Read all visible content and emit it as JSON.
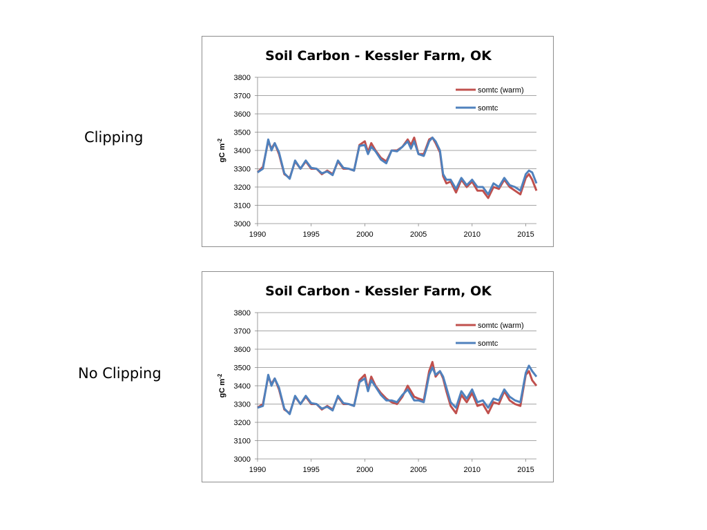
{
  "labels": {
    "chart1": "Clipping",
    "chart2": "No Clipping"
  },
  "colors": {
    "warm": "#c0504d",
    "base": "#4f81bd"
  },
  "chart_data": [
    {
      "type": "line",
      "title": "Soil Carbon - Kessler Farm, OK",
      "ylabel_main": "gC m",
      "ylabel_sup": "-2",
      "xlabel": "",
      "ylim": [
        3000,
        3800
      ],
      "xlim": [
        1990,
        2016
      ],
      "yticks": [
        3000,
        3100,
        3200,
        3300,
        3400,
        3500,
        3600,
        3700,
        3800
      ],
      "xticks": [
        1990,
        1995,
        2000,
        2005,
        2010,
        2015
      ],
      "grid": true,
      "legend": "top-right",
      "series": [
        {
          "name": "somtc (warm)",
          "color": "#c0504d",
          "x": [
            1990,
            1990.5,
            1991,
            1991.3,
            1991.6,
            1992,
            1992.5,
            1993,
            1993.5,
            1994,
            1994.5,
            1995,
            1995.5,
            1996,
            1996.5,
            1997,
            1997.5,
            1998,
            1998.5,
            1999,
            1999.5,
            2000,
            2000.3,
            2000.6,
            2001,
            2001.5,
            2002,
            2002.5,
            2003,
            2003.5,
            2004,
            2004.3,
            2004.6,
            2005,
            2005.5,
            2006,
            2006.3,
            2006.6,
            2007,
            2007.3,
            2007.6,
            2008,
            2008.5,
            2009,
            2009.5,
            2010,
            2010.5,
            2011,
            2011.5,
            2012,
            2012.5,
            2013,
            2013.5,
            2014,
            2014.5,
            2015,
            2015.3,
            2015.6,
            2016
          ],
          "y": [
            3280,
            3310,
            3450,
            3410,
            3440,
            3380,
            3270,
            3250,
            3340,
            3300,
            3340,
            3300,
            3300,
            3270,
            3290,
            3270,
            3340,
            3300,
            3300,
            3290,
            3430,
            3450,
            3390,
            3440,
            3400,
            3360,
            3340,
            3400,
            3400,
            3420,
            3460,
            3430,
            3470,
            3380,
            3380,
            3460,
            3470,
            3440,
            3390,
            3260,
            3220,
            3230,
            3170,
            3240,
            3200,
            3230,
            3180,
            3180,
            3140,
            3200,
            3190,
            3240,
            3200,
            3180,
            3160,
            3250,
            3270,
            3240,
            3180
          ]
        },
        {
          "name": "somtc",
          "color": "#4f81bd",
          "x": [
            1990,
            1990.5,
            1991,
            1991.3,
            1991.6,
            1992,
            1992.5,
            1993,
            1993.5,
            1994,
            1994.5,
            1995,
            1995.5,
            1996,
            1996.5,
            1997,
            1997.5,
            1998,
            1998.5,
            1999,
            1999.5,
            2000,
            2000.3,
            2000.6,
            2001,
            2001.5,
            2002,
            2002.5,
            2003,
            2003.5,
            2004,
            2004.3,
            2004.6,
            2005,
            2005.5,
            2006,
            2006.3,
            2006.6,
            2007,
            2007.3,
            2007.6,
            2008,
            2008.5,
            2009,
            2009.5,
            2010,
            2010.5,
            2011,
            2011.5,
            2012,
            2012.5,
            2013,
            2013.5,
            2014,
            2014.5,
            2015,
            2015.3,
            2015.6,
            2016
          ],
          "y": [
            3280,
            3300,
            3460,
            3400,
            3440,
            3390,
            3275,
            3245,
            3345,
            3300,
            3345,
            3305,
            3300,
            3275,
            3285,
            3265,
            3345,
            3305,
            3300,
            3290,
            3425,
            3430,
            3380,
            3420,
            3395,
            3350,
            3330,
            3400,
            3395,
            3420,
            3450,
            3410,
            3450,
            3380,
            3370,
            3450,
            3470,
            3450,
            3400,
            3270,
            3240,
            3240,
            3190,
            3250,
            3210,
            3240,
            3200,
            3200,
            3160,
            3220,
            3200,
            3250,
            3210,
            3200,
            3180,
            3270,
            3290,
            3280,
            3220
          ]
        }
      ]
    },
    {
      "type": "line",
      "title": "Soil Carbon - Kessler Farm, OK",
      "ylabel_main": "gC m",
      "ylabel_sup": "-2",
      "xlabel": "",
      "ylim": [
        3000,
        3800
      ],
      "xlim": [
        1990,
        2016
      ],
      "yticks": [
        3000,
        3100,
        3200,
        3300,
        3400,
        3500,
        3600,
        3700,
        3800
      ],
      "xticks": [
        1990,
        1995,
        2000,
        2005,
        2010,
        2015
      ],
      "grid": true,
      "legend": "top-right",
      "series": [
        {
          "name": "somtc (warm)",
          "color": "#c0504d",
          "x": [
            1990,
            1990.5,
            1991,
            1991.3,
            1991.6,
            1992,
            1992.5,
            1993,
            1993.5,
            1994,
            1994.5,
            1995,
            1995.5,
            1996,
            1996.5,
            1997,
            1997.5,
            1998,
            1998.5,
            1999,
            1999.5,
            2000,
            2000.3,
            2000.6,
            2001,
            2001.5,
            2002,
            2002.5,
            2003,
            2003.5,
            2004,
            2004.3,
            2004.6,
            2005,
            2005.5,
            2006,
            2006.3,
            2006.6,
            2007,
            2007.3,
            2007.6,
            2008,
            2008.5,
            2009,
            2009.5,
            2010,
            2010.5,
            2011,
            2011.5,
            2012,
            2012.5,
            2013,
            2013.5,
            2014,
            2014.5,
            2015,
            2015.3,
            2015.6,
            2016
          ],
          "y": [
            3280,
            3300,
            3450,
            3410,
            3440,
            3380,
            3270,
            3250,
            3340,
            3300,
            3340,
            3300,
            3300,
            3270,
            3290,
            3270,
            3340,
            3300,
            3300,
            3290,
            3430,
            3460,
            3380,
            3450,
            3400,
            3360,
            3330,
            3310,
            3300,
            3340,
            3400,
            3370,
            3340,
            3330,
            3320,
            3480,
            3530,
            3450,
            3480,
            3440,
            3370,
            3290,
            3250,
            3350,
            3310,
            3360,
            3290,
            3300,
            3250,
            3310,
            3300,
            3370,
            3320,
            3300,
            3290,
            3460,
            3480,
            3430,
            3400
          ]
        },
        {
          "name": "somtc",
          "color": "#4f81bd",
          "x": [
            1990,
            1990.5,
            1991,
            1991.3,
            1991.6,
            1992,
            1992.5,
            1993,
            1993.5,
            1994,
            1994.5,
            1995,
            1995.5,
            1996,
            1996.5,
            1997,
            1997.5,
            1998,
            1998.5,
            1999,
            1999.5,
            2000,
            2000.3,
            2000.6,
            2001,
            2001.5,
            2002,
            2002.5,
            2003,
            2003.5,
            2004,
            2004.3,
            2004.6,
            2005,
            2005.5,
            2006,
            2006.3,
            2006.6,
            2007,
            2007.3,
            2007.6,
            2008,
            2008.5,
            2009,
            2009.5,
            2010,
            2010.5,
            2011,
            2011.5,
            2012,
            2012.5,
            2013,
            2013.5,
            2014,
            2014.5,
            2015,
            2015.3,
            2015.6,
            2016
          ],
          "y": [
            3280,
            3290,
            3460,
            3400,
            3440,
            3390,
            3275,
            3245,
            3345,
            3300,
            3345,
            3305,
            3300,
            3275,
            3285,
            3265,
            3345,
            3305,
            3300,
            3290,
            3420,
            3440,
            3370,
            3430,
            3395,
            3350,
            3320,
            3320,
            3310,
            3350,
            3380,
            3350,
            3320,
            3320,
            3310,
            3460,
            3500,
            3460,
            3480,
            3450,
            3390,
            3310,
            3280,
            3370,
            3330,
            3380,
            3310,
            3320,
            3280,
            3330,
            3320,
            3380,
            3340,
            3320,
            3310,
            3470,
            3510,
            3480,
            3450
          ]
        }
      ]
    }
  ]
}
